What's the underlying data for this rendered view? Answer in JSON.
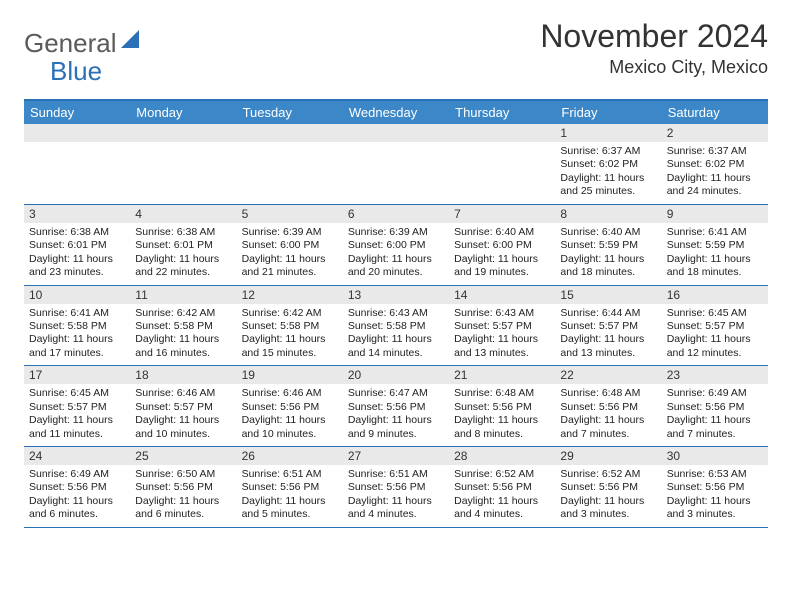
{
  "logo": {
    "text1": "General",
    "text2": "Blue"
  },
  "title": "November 2024",
  "location": "Mexico City, Mexico",
  "colors": {
    "header_bg": "#3b87c8",
    "border": "#2a71b8",
    "daynum_bg": "#e9e9e9",
    "logo_gray": "#5a5a5a",
    "logo_blue": "#2a71b8"
  },
  "day_headers": [
    "Sunday",
    "Monday",
    "Tuesday",
    "Wednesday",
    "Thursday",
    "Friday",
    "Saturday"
  ],
  "weeks": [
    [
      {
        "n": "",
        "lines": []
      },
      {
        "n": "",
        "lines": []
      },
      {
        "n": "",
        "lines": []
      },
      {
        "n": "",
        "lines": []
      },
      {
        "n": "",
        "lines": []
      },
      {
        "n": "1",
        "lines": [
          "Sunrise: 6:37 AM",
          "Sunset: 6:02 PM",
          "Daylight: 11 hours and 25 minutes."
        ]
      },
      {
        "n": "2",
        "lines": [
          "Sunrise: 6:37 AM",
          "Sunset: 6:02 PM",
          "Daylight: 11 hours and 24 minutes."
        ]
      }
    ],
    [
      {
        "n": "3",
        "lines": [
          "Sunrise: 6:38 AM",
          "Sunset: 6:01 PM",
          "Daylight: 11 hours and 23 minutes."
        ]
      },
      {
        "n": "4",
        "lines": [
          "Sunrise: 6:38 AM",
          "Sunset: 6:01 PM",
          "Daylight: 11 hours and 22 minutes."
        ]
      },
      {
        "n": "5",
        "lines": [
          "Sunrise: 6:39 AM",
          "Sunset: 6:00 PM",
          "Daylight: 11 hours and 21 minutes."
        ]
      },
      {
        "n": "6",
        "lines": [
          "Sunrise: 6:39 AM",
          "Sunset: 6:00 PM",
          "Daylight: 11 hours and 20 minutes."
        ]
      },
      {
        "n": "7",
        "lines": [
          "Sunrise: 6:40 AM",
          "Sunset: 6:00 PM",
          "Daylight: 11 hours and 19 minutes."
        ]
      },
      {
        "n": "8",
        "lines": [
          "Sunrise: 6:40 AM",
          "Sunset: 5:59 PM",
          "Daylight: 11 hours and 18 minutes."
        ]
      },
      {
        "n": "9",
        "lines": [
          "Sunrise: 6:41 AM",
          "Sunset: 5:59 PM",
          "Daylight: 11 hours and 18 minutes."
        ]
      }
    ],
    [
      {
        "n": "10",
        "lines": [
          "Sunrise: 6:41 AM",
          "Sunset: 5:58 PM",
          "Daylight: 11 hours and 17 minutes."
        ]
      },
      {
        "n": "11",
        "lines": [
          "Sunrise: 6:42 AM",
          "Sunset: 5:58 PM",
          "Daylight: 11 hours and 16 minutes."
        ]
      },
      {
        "n": "12",
        "lines": [
          "Sunrise: 6:42 AM",
          "Sunset: 5:58 PM",
          "Daylight: 11 hours and 15 minutes."
        ]
      },
      {
        "n": "13",
        "lines": [
          "Sunrise: 6:43 AM",
          "Sunset: 5:58 PM",
          "Daylight: 11 hours and 14 minutes."
        ]
      },
      {
        "n": "14",
        "lines": [
          "Sunrise: 6:43 AM",
          "Sunset: 5:57 PM",
          "Daylight: 11 hours and 13 minutes."
        ]
      },
      {
        "n": "15",
        "lines": [
          "Sunrise: 6:44 AM",
          "Sunset: 5:57 PM",
          "Daylight: 11 hours and 13 minutes."
        ]
      },
      {
        "n": "16",
        "lines": [
          "Sunrise: 6:45 AM",
          "Sunset: 5:57 PM",
          "Daylight: 11 hours and 12 minutes."
        ]
      }
    ],
    [
      {
        "n": "17",
        "lines": [
          "Sunrise: 6:45 AM",
          "Sunset: 5:57 PM",
          "Daylight: 11 hours and 11 minutes."
        ]
      },
      {
        "n": "18",
        "lines": [
          "Sunrise: 6:46 AM",
          "Sunset: 5:57 PM",
          "Daylight: 11 hours and 10 minutes."
        ]
      },
      {
        "n": "19",
        "lines": [
          "Sunrise: 6:46 AM",
          "Sunset: 5:56 PM",
          "Daylight: 11 hours and 10 minutes."
        ]
      },
      {
        "n": "20",
        "lines": [
          "Sunrise: 6:47 AM",
          "Sunset: 5:56 PM",
          "Daylight: 11 hours and 9 minutes."
        ]
      },
      {
        "n": "21",
        "lines": [
          "Sunrise: 6:48 AM",
          "Sunset: 5:56 PM",
          "Daylight: 11 hours and 8 minutes."
        ]
      },
      {
        "n": "22",
        "lines": [
          "Sunrise: 6:48 AM",
          "Sunset: 5:56 PM",
          "Daylight: 11 hours and 7 minutes."
        ]
      },
      {
        "n": "23",
        "lines": [
          "Sunrise: 6:49 AM",
          "Sunset: 5:56 PM",
          "Daylight: 11 hours and 7 minutes."
        ]
      }
    ],
    [
      {
        "n": "24",
        "lines": [
          "Sunrise: 6:49 AM",
          "Sunset: 5:56 PM",
          "Daylight: 11 hours and 6 minutes."
        ]
      },
      {
        "n": "25",
        "lines": [
          "Sunrise: 6:50 AM",
          "Sunset: 5:56 PM",
          "Daylight: 11 hours and 6 minutes."
        ]
      },
      {
        "n": "26",
        "lines": [
          "Sunrise: 6:51 AM",
          "Sunset: 5:56 PM",
          "Daylight: 11 hours and 5 minutes."
        ]
      },
      {
        "n": "27",
        "lines": [
          "Sunrise: 6:51 AM",
          "Sunset: 5:56 PM",
          "Daylight: 11 hours and 4 minutes."
        ]
      },
      {
        "n": "28",
        "lines": [
          "Sunrise: 6:52 AM",
          "Sunset: 5:56 PM",
          "Daylight: 11 hours and 4 minutes."
        ]
      },
      {
        "n": "29",
        "lines": [
          "Sunrise: 6:52 AM",
          "Sunset: 5:56 PM",
          "Daylight: 11 hours and 3 minutes."
        ]
      },
      {
        "n": "30",
        "lines": [
          "Sunrise: 6:53 AM",
          "Sunset: 5:56 PM",
          "Daylight: 11 hours and 3 minutes."
        ]
      }
    ]
  ]
}
